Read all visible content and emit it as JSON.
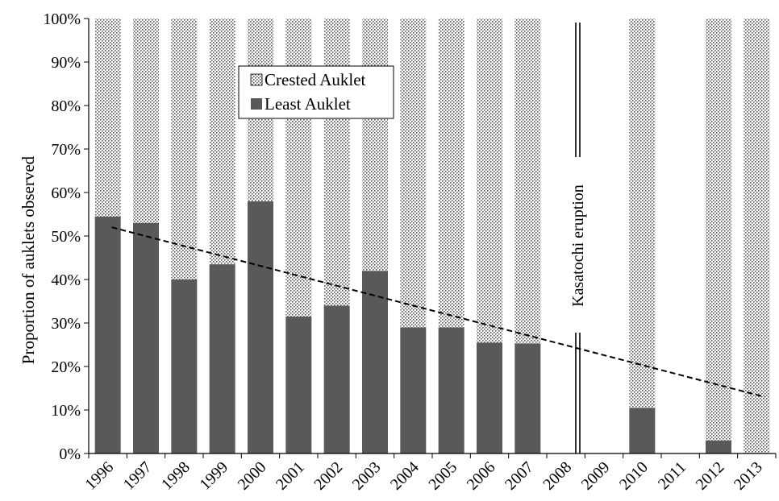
{
  "chart_data": {
    "type": "bar",
    "stacked": true,
    "ylabel": "Proportion of auklets observed",
    "xlabel": "",
    "ylim": [
      0,
      100
    ],
    "yticks": [
      "0%",
      "10%",
      "20%",
      "30%",
      "40%",
      "50%",
      "60%",
      "70%",
      "80%",
      "90%",
      "100%"
    ],
    "categories": [
      "1996",
      "1997",
      "1998",
      "1999",
      "2000",
      "2001",
      "2002",
      "2003",
      "2004",
      "2005",
      "2006",
      "2007",
      "2008",
      "2009",
      "2010",
      "2011",
      "2012",
      "2013"
    ],
    "series": [
      {
        "name": "Least Auklet",
        "color": "#595959",
        "values": [
          54.5,
          53,
          40,
          43.5,
          58,
          31.5,
          34,
          42,
          29,
          29,
          25.5,
          25.3,
          null,
          null,
          10.5,
          null,
          3,
          0
        ]
      },
      {
        "name": "Crested Auklet",
        "color": "#dcdcdc",
        "pattern": "dotted",
        "values": [
          45.5,
          47,
          60,
          56.5,
          42,
          68.5,
          66,
          58,
          71,
          71,
          74.5,
          74.7,
          null,
          null,
          89.5,
          null,
          97,
          100
        ]
      }
    ],
    "legend": {
      "position": "upper-left",
      "order": [
        "Crested Auklet",
        "Least Auklet"
      ]
    },
    "trendline": {
      "style": "dashed",
      "start": {
        "x": "1996",
        "y": 52
      },
      "end": {
        "x": "2013",
        "y": 13
      }
    },
    "annotation": {
      "text": "Kasatochi eruption",
      "x": "2008",
      "style": "double-vertical-line"
    },
    "grid": false
  }
}
